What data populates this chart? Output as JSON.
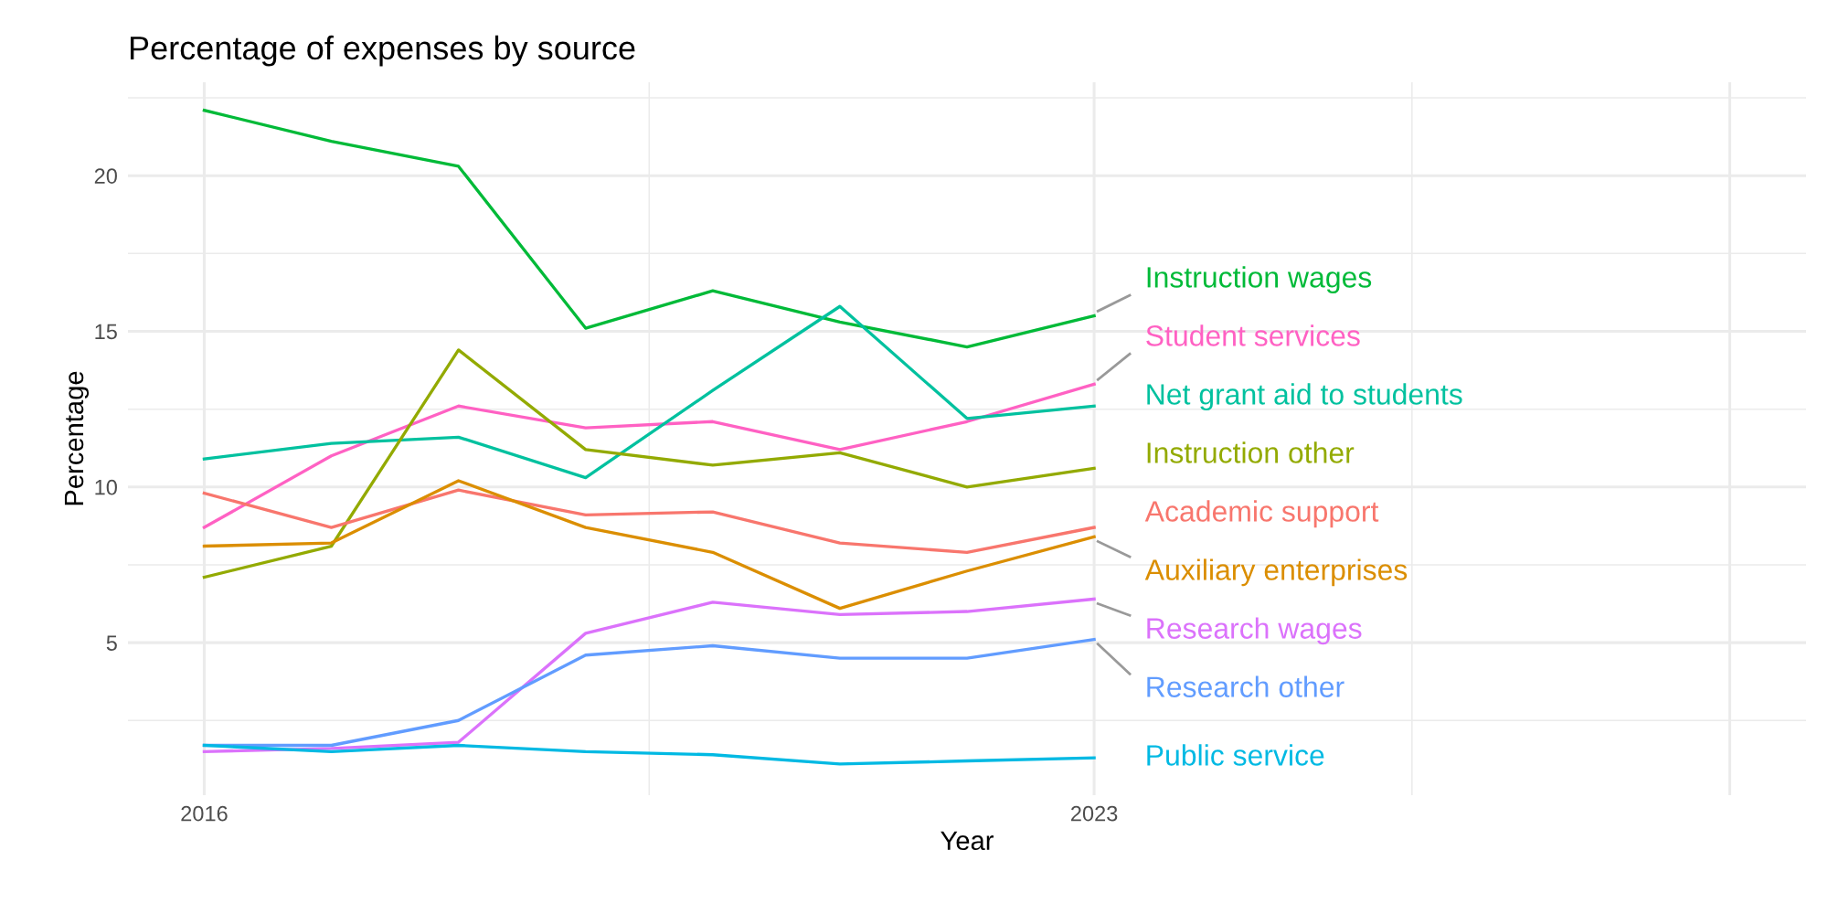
{
  "chart_data": {
    "type": "line",
    "title": "Percentage of expenses by source",
    "xlabel": "Year",
    "ylabel": "Percentage",
    "x": [
      2016,
      2017,
      2018,
      2019,
      2020,
      2021,
      2022,
      2023
    ],
    "series": [
      {
        "name": "Instruction wages",
        "color": "#00ba38",
        "values": [
          22.1,
          21.1,
          20.3,
          15.1,
          16.3,
          15.3,
          14.5,
          15.5
        ]
      },
      {
        "name": "Student services",
        "color": "#ff61c3",
        "values": [
          8.7,
          11.0,
          12.6,
          11.9,
          12.1,
          11.2,
          12.1,
          13.3
        ]
      },
      {
        "name": "Net grant aid to students",
        "color": "#00c19f",
        "values": [
          10.9,
          11.4,
          11.6,
          10.3,
          13.1,
          15.8,
          12.2,
          12.6
        ]
      },
      {
        "name": "Instruction other",
        "color": "#93aa00",
        "values": [
          7.1,
          8.1,
          14.4,
          11.2,
          10.7,
          11.1,
          10.0,
          10.6
        ]
      },
      {
        "name": "Academic support",
        "color": "#f8766d",
        "values": [
          9.8,
          8.7,
          9.9,
          9.1,
          9.2,
          8.2,
          7.9,
          8.7
        ]
      },
      {
        "name": "Auxiliary enterprises",
        "color": "#db8e00",
        "values": [
          8.1,
          8.2,
          10.2,
          8.7,
          7.9,
          6.1,
          7.3,
          8.4
        ]
      },
      {
        "name": "Research wages",
        "color": "#db72fb",
        "values": [
          1.5,
          1.6,
          1.8,
          5.3,
          6.3,
          5.9,
          6.0,
          6.4
        ]
      },
      {
        "name": "Research other",
        "color": "#619cff",
        "values": [
          1.7,
          1.7,
          2.5,
          4.6,
          4.9,
          4.5,
          4.5,
          5.1
        ]
      },
      {
        "name": "Public service",
        "color": "#00b9e3",
        "values": [
          1.7,
          1.5,
          1.7,
          1.5,
          1.4,
          1.1,
          1.2,
          1.3
        ]
      }
    ],
    "xlim": [
      2015.4,
      2028.6
    ],
    "xticks": [
      2016,
      2023,
      {
        "value": 2028,
        "label": null
      }
    ],
    "ylim": [
      0.1,
      23.0
    ],
    "yticks": [
      5,
      10,
      15,
      20
    ],
    "grid": true,
    "legend": false,
    "marker": "none",
    "line_style": "solid"
  }
}
